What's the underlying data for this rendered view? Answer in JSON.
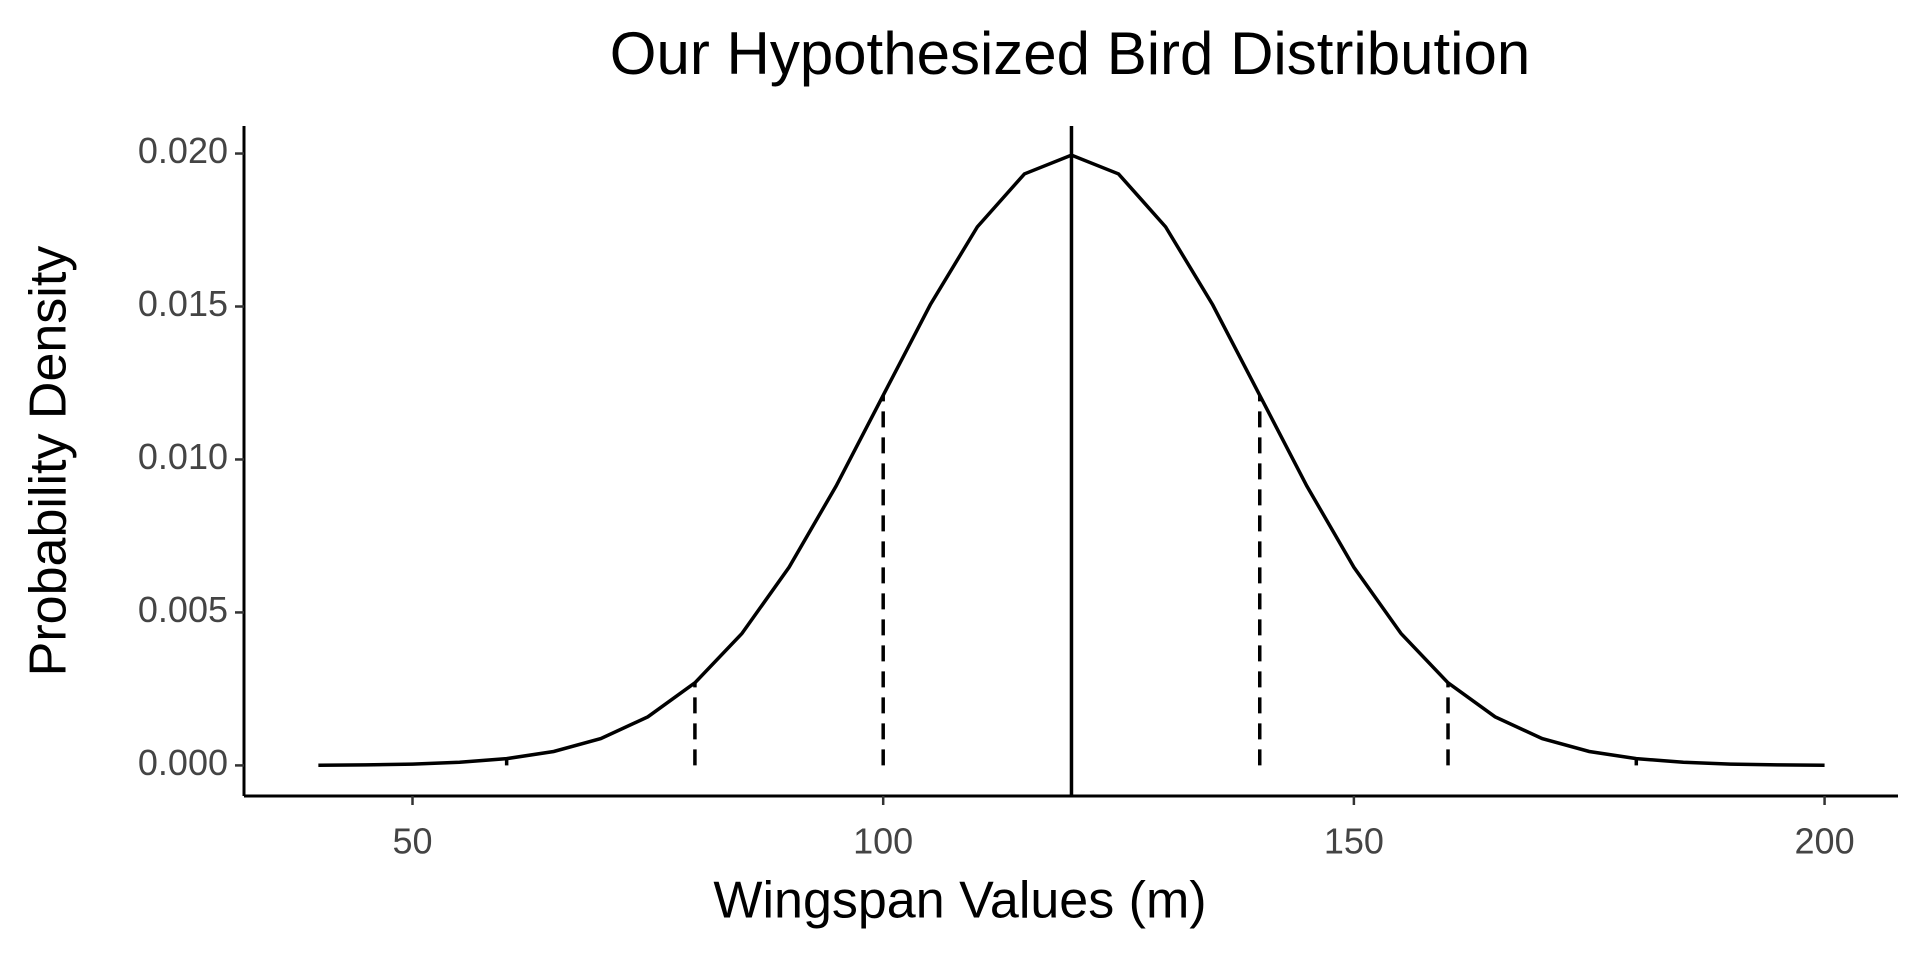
{
  "chart_data": {
    "type": "line",
    "title": "Our Hypothesized Bird Distribution",
    "x_label": "Wingspan Values (m)",
    "y_label": "Probability Density",
    "color": "#000000",
    "x": [
      40,
      45,
      50,
      55,
      60,
      65,
      70,
      75,
      80,
      85,
      90,
      95,
      100,
      105,
      110,
      115,
      120,
      125,
      130,
      135,
      140,
      145,
      150,
      155,
      160,
      165,
      170,
      175,
      180,
      185,
      190,
      195,
      200
    ],
    "values": [
      6.7e-06,
      1.77e-05,
      4.37e-05,
      0.0001014,
      0.0002216,
      0.0004547,
      0.0008764,
      0.001587,
      0.0026995,
      0.0043139,
      0.0064759,
      0.0091325,
      0.0120985,
      0.0150569,
      0.0176033,
      0.0193334,
      0.0199471,
      0.0193334,
      0.0176033,
      0.0150569,
      0.0120985,
      0.0091325,
      0.0064759,
      0.0043139,
      0.0026995,
      0.001587,
      0.0008764,
      0.0004547,
      0.0002216,
      0.0001014,
      4.37e-05,
      1.77e-05,
      6.7e-06
    ],
    "mean_x": 120,
    "sd_lines": {
      "x": [
        60,
        80,
        100,
        140,
        160,
        180
      ],
      "values": [
        0.0002216,
        0.0026995,
        0.0120985,
        0.0120985,
        0.0026995,
        0.0002216
      ]
    },
    "xlim": [
      32.1,
      207.8
    ],
    "ylim": [
      -0.001,
      0.0209
    ],
    "xticks": [
      50,
      100,
      150,
      200
    ],
    "yticks": [
      {
        "value": 0,
        "label": "0.000"
      },
      {
        "value": 0.005,
        "label": "0.005"
      },
      {
        "value": 0.01,
        "label": "0.010"
      },
      {
        "value": 0.015,
        "label": "0.015"
      },
      {
        "value": 0.02,
        "label": "0.020"
      }
    ]
  }
}
